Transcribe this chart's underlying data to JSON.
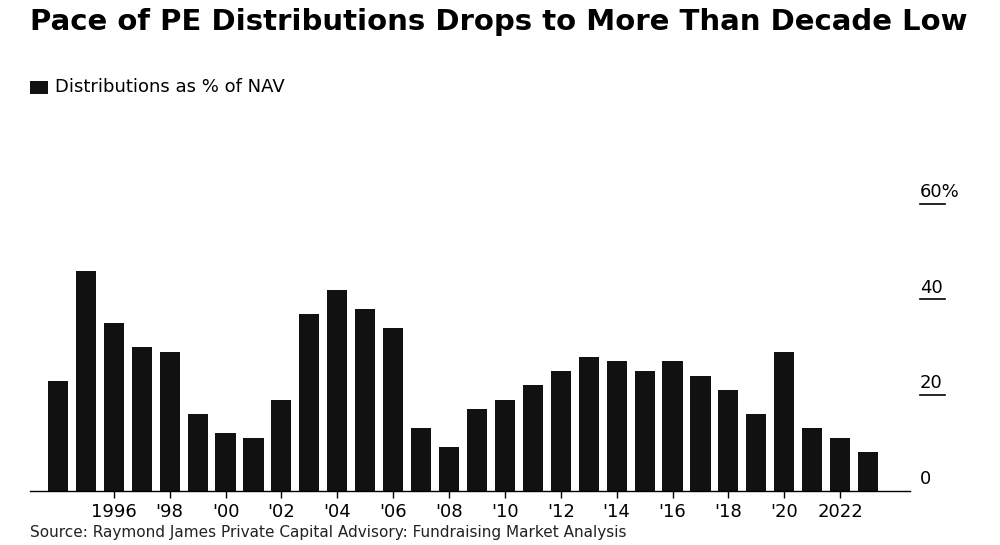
{
  "title": "Pace of PE Distributions Drops to More Than Decade Low",
  "legend_label": "Distributions as % of NAV",
  "source": "Source: Raymond James Private Capital Advisory: Fundraising Market Analysis",
  "bar_color": "#111111",
  "background_color": "#ffffff",
  "years": [
    1994,
    1995,
    1996,
    1997,
    1998,
    1999,
    2000,
    2001,
    2002,
    2003,
    2004,
    2005,
    2006,
    2007,
    2008,
    2009,
    2010,
    2011,
    2012,
    2013,
    2014,
    2015,
    2016,
    2017,
    2018,
    2019,
    2020,
    2021,
    2022,
    2023
  ],
  "values": [
    23,
    46,
    35,
    30,
    29,
    16,
    12,
    11,
    19,
    37,
    42,
    38,
    34,
    13,
    9,
    17,
    19,
    22,
    25,
    28,
    27,
    25,
    27,
    24,
    21,
    16,
    29,
    13,
    11,
    8
  ],
  "yticks": [
    0,
    20,
    40,
    60
  ],
  "ylim": [
    0,
    65
  ],
  "xlim_left": 1993.0,
  "xlim_right": 2024.5,
  "xtick_positions": [
    1996,
    1998,
    2000,
    2002,
    2004,
    2006,
    2008,
    2010,
    2012,
    2014,
    2016,
    2018,
    2020,
    2022
  ],
  "xtick_labels": [
    "1996",
    "'98",
    "'00",
    "'02",
    "'04",
    "'06",
    "'08",
    "'10",
    "'12",
    "'14",
    "'16",
    "'18",
    "'20",
    "2022"
  ],
  "bar_width": 0.72,
  "title_fontsize": 21,
  "legend_fontsize": 13,
  "tick_fontsize": 13,
  "source_fontsize": 11
}
